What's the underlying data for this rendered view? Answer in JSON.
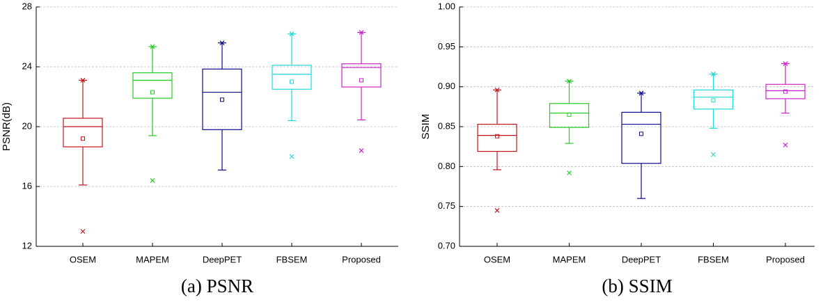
{
  "chart_data": [
    {
      "type": "box",
      "caption": "(a) PSNR",
      "ylabel": "PSNR(dB)",
      "categories": [
        "OSEM",
        "MAPEM",
        "DeepPET",
        "FBSEM",
        "Proposed"
      ],
      "ylim": [
        12,
        28
      ],
      "yticks": [
        12,
        16,
        20,
        24,
        28
      ],
      "grid": true,
      "boxes": [
        {
          "color": "#c0141c",
          "low": 16.1,
          "q1": 18.65,
          "median": 20.0,
          "q3": 20.56,
          "high": 23.1,
          "mean": 19.2,
          "outliers": [
            13.0
          ]
        },
        {
          "color": "#22cc22",
          "low": 19.4,
          "q1": 21.9,
          "median": 23.1,
          "q3": 23.6,
          "high": 25.35,
          "mean": 22.3,
          "outliers": [
            16.4
          ]
        },
        {
          "color": "#0a0a8c",
          "low": 17.1,
          "q1": 19.8,
          "median": 22.3,
          "q3": 23.85,
          "high": 25.6,
          "mean": 21.8,
          "outliers": []
        },
        {
          "color": "#22d8d8",
          "low": 20.4,
          "q1": 22.5,
          "median": 23.5,
          "q3": 24.1,
          "high": 26.2,
          "mean": 23.0,
          "outliers": [
            18.0
          ]
        },
        {
          "color": "#cc22cc",
          "low": 20.45,
          "q1": 22.65,
          "median": 23.95,
          "q3": 24.2,
          "high": 26.3,
          "mean": 23.1,
          "outliers": [
            18.4
          ]
        }
      ]
    },
    {
      "type": "box",
      "caption": "(b) SSIM",
      "ylabel": "SSIM",
      "categories": [
        "OSEM",
        "MAPEM",
        "DeepPET",
        "FBSEM",
        "Proposed"
      ],
      "ylim": [
        0.7,
        1.0
      ],
      "yticks": [
        {
          "value": 0.7,
          "label": "0.70"
        },
        0.75,
        {
          "value": 0.8,
          "label": "0.80"
        },
        0.85,
        {
          "value": 0.9,
          "label": "0.90"
        },
        0.95,
        {
          "value": 1.0,
          "label": "1.00"
        }
      ],
      "grid": true,
      "boxes": [
        {
          "color": "#c0141c",
          "low": 0.796,
          "q1": 0.819,
          "median": 0.839,
          "q3": 0.853,
          "high": 0.896,
          "mean": 0.838,
          "outliers": [
            0.745
          ]
        },
        {
          "color": "#22cc22",
          "low": 0.829,
          "q1": 0.849,
          "median": 0.867,
          "q3": 0.879,
          "high": 0.907,
          "mean": 0.865,
          "outliers": [
            0.792
          ]
        },
        {
          "color": "#0a0a8c",
          "low": 0.76,
          "q1": 0.804,
          "median": 0.853,
          "q3": 0.868,
          "high": 0.892,
          "mean": 0.841,
          "outliers": []
        },
        {
          "color": "#22d8d8",
          "low": 0.848,
          "q1": 0.872,
          "median": 0.887,
          "q3": 0.896,
          "high": 0.916,
          "mean": 0.883,
          "outliers": [
            0.815
          ]
        },
        {
          "color": "#cc22cc",
          "low": 0.867,
          "q1": 0.885,
          "median": 0.895,
          "q3": 0.903,
          "high": 0.929,
          "mean": 0.894,
          "outliers": [
            0.827
          ]
        }
      ]
    }
  ]
}
